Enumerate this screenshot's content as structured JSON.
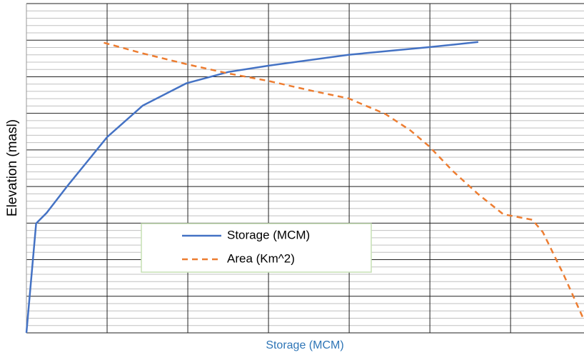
{
  "chart_data": {
    "type": "line",
    "x_label": "Storage (MCM)",
    "y_label": "Elevation  (masl)",
    "xlim": [
      0,
      6.91
    ],
    "ylim": [
      0,
      9
    ],
    "xticks": [
      0,
      1,
      2,
      3,
      4,
      5,
      6
    ],
    "yticks": [
      0,
      1,
      2,
      3,
      4,
      5,
      6,
      7,
      8,
      9
    ],
    "grid": true,
    "legend": "center",
    "series": [
      {
        "name": "Storage (MCM)",
        "color": "#4472c4",
        "dash": false,
        "x": [
          0,
          0.12,
          0.25,
          0.51,
          1.0,
          1.44,
          1.98,
          2.5,
          2.99,
          3.99,
          4.99,
          5.6
        ],
        "values": [
          0,
          2.99,
          3.28,
          4.02,
          5.35,
          6.21,
          6.82,
          7.13,
          7.3,
          7.6,
          7.81,
          7.95
        ]
      },
      {
        "name": "Area (Km^2)",
        "color": "#ed7d31",
        "dash": true,
        "x": [
          0.96,
          1.44,
          1.99,
          2.5,
          2.99,
          3.57,
          3.99,
          4.45,
          4.76,
          4.99,
          5.29,
          5.6,
          5.91,
          6.27,
          6.4,
          6.66,
          6.91
        ],
        "values": [
          7.93,
          7.64,
          7.34,
          7.09,
          6.89,
          6.6,
          6.41,
          5.98,
          5.53,
          5.1,
          4.41,
          3.79,
          3.24,
          3.09,
          2.75,
          1.58,
          0.35
        ]
      }
    ]
  }
}
